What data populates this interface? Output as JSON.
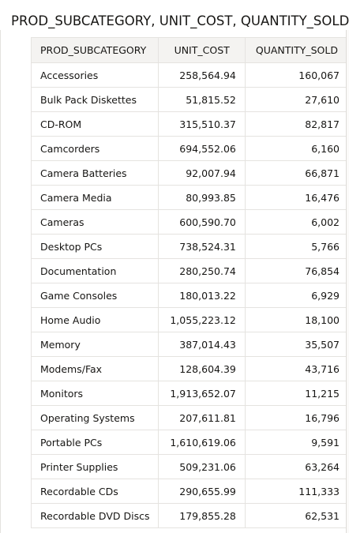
{
  "report": {
    "title": "PROD_SUBCATEGORY, UNIT_COST, QUANTITY_SOLD"
  },
  "table": {
    "columns": [
      "PROD_SUBCATEGORY",
      "UNIT_COST",
      "QUANTITY_SOLD"
    ],
    "rows": [
      [
        "Accessories",
        "258,564.94",
        "160,067"
      ],
      [
        "Bulk Pack Diskettes",
        "51,815.52",
        "27,610"
      ],
      [
        "CD-ROM",
        "315,510.37",
        "82,817"
      ],
      [
        "Camcorders",
        "694,552.06",
        "6,160"
      ],
      [
        "Camera Batteries",
        "92,007.94",
        "66,871"
      ],
      [
        "Camera Media",
        "80,993.85",
        "16,476"
      ],
      [
        "Cameras",
        "600,590.70",
        "6,002"
      ],
      [
        "Desktop PCs",
        "738,524.31",
        "5,766"
      ],
      [
        "Documentation",
        "280,250.74",
        "76,854"
      ],
      [
        "Game Consoles",
        "180,013.22",
        "6,929"
      ],
      [
        "Home Audio",
        "1,055,223.12",
        "18,100"
      ],
      [
        "Memory",
        "387,014.43",
        "35,507"
      ],
      [
        "Modems/Fax",
        "128,604.39",
        "43,716"
      ],
      [
        "Monitors",
        "1,913,652.07",
        "11,215"
      ],
      [
        "Operating Systems",
        "207,611.81",
        "16,796"
      ],
      [
        "Portable PCs",
        "1,610,619.06",
        "9,591"
      ],
      [
        "Printer Supplies",
        "509,231.06",
        "63,264"
      ],
      [
        "Recordable CDs",
        "290,655.99",
        "111,333"
      ],
      [
        "Recordable DVD Discs",
        "179,855.28",
        "62,531"
      ]
    ]
  }
}
